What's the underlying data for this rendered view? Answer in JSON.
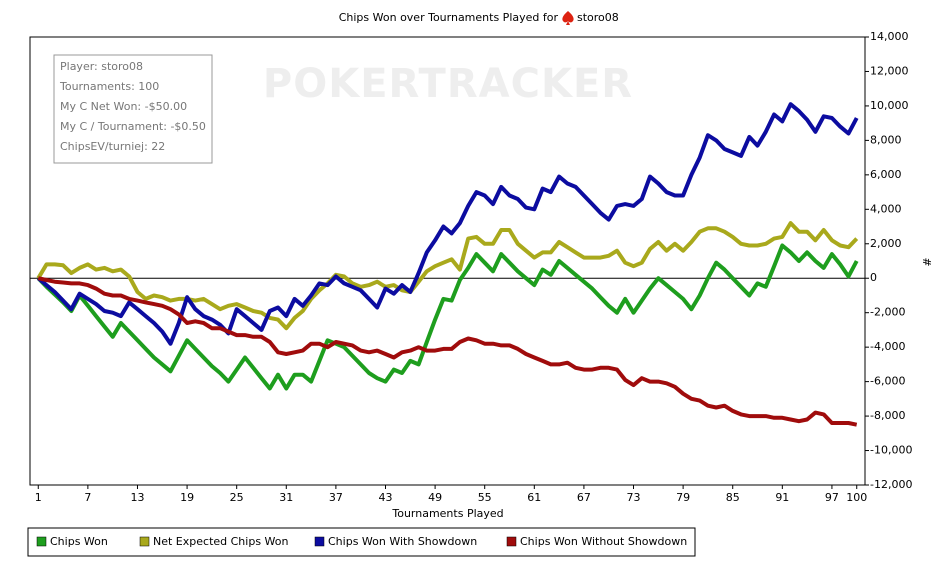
{
  "chart_data": {
    "type": "line",
    "title": "Chips Won over Tournaments Played for",
    "player": "storo08",
    "watermark": "POKERTRACKER",
    "info": [
      "Player: storo08",
      "Tournaments: 100",
      "My C Net Won: -$50.00",
      "My C / Tournament: -$0.50",
      "ChipsEV/turniej: 22"
    ],
    "xlabel": "Tournaments Played",
    "ylabel": "#",
    "xlim": [
      0,
      101
    ],
    "ylim": [
      -12000,
      14000
    ],
    "xticks": [
      1,
      7,
      13,
      19,
      25,
      31,
      37,
      43,
      49,
      55,
      61,
      67,
      73,
      79,
      85,
      91,
      97,
      100
    ],
    "yticks": [
      {
        "value": -12000,
        "label": "-12,000"
      },
      {
        "value": -10000,
        "label": "-10,000"
      },
      {
        "value": -8000,
        "label": "-8,000"
      },
      {
        "value": -6000,
        "label": "-6,000"
      },
      {
        "value": -4000,
        "label": "-4,000"
      },
      {
        "value": -2000,
        "label": "-2,000"
      },
      0,
      {
        "value": 2000,
        "label": "2,000"
      },
      {
        "value": 4000,
        "label": "4,000"
      },
      {
        "value": 6000,
        "label": "6,000"
      },
      {
        "value": 8000,
        "label": "8,000"
      },
      {
        "value": 10000,
        "label": "10,000"
      },
      {
        "value": 12000,
        "label": "12,000"
      },
      {
        "value": 14000,
        "label": "14,000"
      }
    ],
    "grid": false,
    "legend": "bottom",
    "x": [
      1,
      2,
      3,
      4,
      5,
      6,
      7,
      8,
      9,
      10,
      11,
      12,
      13,
      14,
      15,
      16,
      17,
      18,
      19,
      20,
      21,
      22,
      23,
      24,
      25,
      26,
      27,
      28,
      29,
      30,
      31,
      32,
      33,
      34,
      35,
      36,
      37,
      38,
      39,
      40,
      41,
      42,
      43,
      44,
      45,
      46,
      47,
      48,
      49,
      50,
      51,
      52,
      53,
      54,
      55,
      56,
      57,
      58,
      59,
      60,
      61,
      62,
      63,
      64,
      65,
      66,
      67,
      68,
      69,
      70,
      71,
      72,
      73,
      74,
      75,
      76,
      77,
      78,
      79,
      80,
      81,
      82,
      83,
      84,
      85,
      86,
      87,
      88,
      89,
      90,
      91,
      92,
      93,
      94,
      95,
      96,
      97,
      98,
      99,
      100
    ],
    "series": [
      {
        "name": "Chips Won",
        "color": "#1e9e1e",
        "values": [
          0,
          -500,
          -950,
          -1400,
          -1900,
          -1000,
          -1600,
          -2200,
          -2800,
          -3400,
          -2600,
          -3100,
          -3600,
          -4100,
          -4600,
          -5000,
          -5400,
          -4500,
          -3600,
          -4100,
          -4600,
          -5100,
          -5500,
          -6000,
          -5300,
          -4600,
          -5200,
          -5800,
          -6400,
          -5600,
          -6400,
          -5600,
          -5600,
          -6000,
          -4800,
          -3600,
          -3800,
          -4000,
          -4500,
          -5000,
          -5500,
          -5800,
          -6000,
          -5300,
          -5500,
          -4800,
          -5000,
          -3700,
          -2400,
          -1200,
          -1300,
          -100,
          600,
          1400,
          900,
          400,
          1400,
          900,
          400,
          0,
          -400,
          500,
          200,
          1000,
          600,
          200,
          -200,
          -600,
          -1100,
          -1600,
          -2000,
          -1200,
          -2000,
          -1300,
          -600,
          0,
          -400,
          -800,
          -1200,
          -1800,
          -1000,
          0,
          900,
          500,
          0,
          -500,
          -1000,
          -300,
          -500,
          700,
          1900,
          1500,
          1000,
          1500,
          1000,
          600,
          1400,
          800,
          100,
          1000
        ]
      },
      {
        "name": "Net Expected Chips Won",
        "color": "#a9a91c",
        "values": [
          0,
          800,
          800,
          750,
          300,
          600,
          800,
          500,
          600,
          400,
          500,
          100,
          -800,
          -1200,
          -1000,
          -1100,
          -1300,
          -1200,
          -1200,
          -1300,
          -1200,
          -1500,
          -1800,
          -1600,
          -1500,
          -1700,
          -1900,
          -2000,
          -2300,
          -2400,
          -2900,
          -2300,
          -1900,
          -1200,
          -700,
          -300,
          200,
          100,
          -300,
          -500,
          -400,
          -200,
          -500,
          -400,
          -700,
          -800,
          -200,
          400,
          700,
          900,
          1100,
          500,
          2300,
          2400,
          2000,
          2000,
          2800,
          2800,
          2000,
          1600,
          1200,
          1500,
          1500,
          2100,
          1800,
          1500,
          1200,
          1200,
          1200,
          1300,
          1600,
          900,
          700,
          900,
          1700,
          2100,
          1600,
          2000,
          1600,
          2100,
          2700,
          2900,
          2900,
          2700,
          2400,
          2000,
          1900,
          1900,
          2000,
          2300,
          2400,
          3200,
          2700,
          2700,
          2200,
          2800,
          2200,
          1900,
          1800,
          2300
        ]
      },
      {
        "name": "Chips Won With Showdown",
        "color": "#0c0ca0",
        "values": [
          0,
          -400,
          -800,
          -1300,
          -1800,
          -900,
          -1200,
          -1500,
          -1900,
          -2000,
          -2200,
          -1400,
          -1800,
          -2200,
          -2600,
          -3100,
          -3800,
          -2600,
          -1100,
          -1800,
          -2200,
          -2400,
          -2700,
          -3200,
          -1800,
          -2200,
          -2600,
          -3000,
          -1900,
          -1700,
          -2200,
          -1200,
          -1600,
          -1000,
          -300,
          -400,
          100,
          -300,
          -500,
          -700,
          -1200,
          -1700,
          -600,
          -900,
          -400,
          -800,
          300,
          1500,
          2200,
          3000,
          2600,
          3200,
          4200,
          5000,
          4800,
          4300,
          5300,
          4800,
          4600,
          4100,
          4000,
          5200,
          5000,
          5900,
          5500,
          5300,
          4800,
          4300,
          3800,
          3400,
          4200,
          4300,
          4200,
          4600,
          5900,
          5500,
          5000,
          4800,
          4800,
          6000,
          7000,
          8300,
          8000,
          7500,
          7300,
          7100,
          8200,
          7700,
          8500,
          9500,
          9100,
          10100,
          9700,
          9200,
          8500,
          9400,
          9300,
          8800,
          8400,
          9300
        ]
      },
      {
        "name": "Chips Won Without Showdown",
        "color": "#a00c0c",
        "values": [
          0,
          -100,
          -200,
          -250,
          -300,
          -300,
          -400,
          -600,
          -900,
          -1000,
          -1000,
          -1200,
          -1300,
          -1400,
          -1500,
          -1600,
          -1800,
          -2100,
          -2600,
          -2500,
          -2600,
          -2900,
          -2900,
          -3100,
          -3300,
          -3300,
          -3400,
          -3400,
          -3700,
          -4300,
          -4400,
          -4300,
          -4200,
          -3800,
          -3800,
          -4000,
          -3700,
          -3800,
          -3900,
          -4200,
          -4300,
          -4200,
          -4400,
          -4600,
          -4300,
          -4200,
          -4000,
          -4200,
          -4200,
          -4100,
          -4100,
          -3700,
          -3500,
          -3600,
          -3800,
          -3800,
          -3900,
          -3900,
          -4100,
          -4400,
          -4600,
          -4800,
          -5000,
          -5000,
          -4900,
          -5200,
          -5300,
          -5300,
          -5200,
          -5200,
          -5300,
          -5900,
          -6200,
          -5800,
          -6000,
          -6000,
          -6100,
          -6300,
          -6700,
          -7000,
          -7100,
          -7400,
          -7500,
          -7400,
          -7700,
          -7900,
          -8000,
          -8000,
          -8000,
          -8100,
          -8100,
          -8200,
          -8300,
          -8200,
          -7800,
          -7900,
          -8400,
          -8400,
          -8400,
          -8500
        ]
      }
    ]
  }
}
